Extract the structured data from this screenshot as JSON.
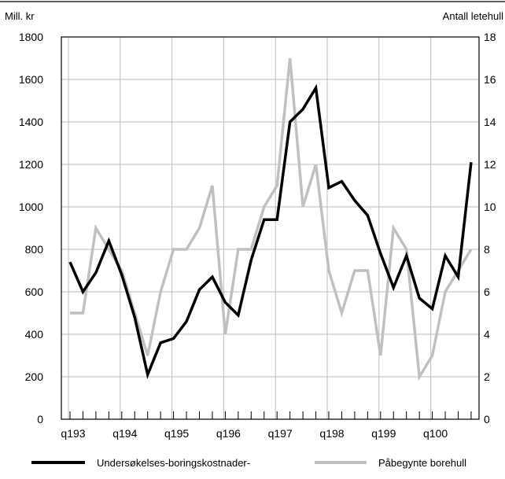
{
  "chart_data": {
    "type": "line",
    "left_axis_label": "Mill. kr",
    "right_axis_label": "Antall letehull",
    "ylim_left": [
      0,
      1800
    ],
    "yticks_left": [
      "0",
      "200",
      "400",
      "600",
      "800",
      "1000",
      "1200",
      "1400",
      "1600",
      "1800"
    ],
    "ylim_right": [
      0,
      18
    ],
    "yticks_right": [
      "0",
      "2",
      "4",
      "6",
      "8",
      "10",
      "12",
      "14",
      "16",
      "18"
    ],
    "x_labels": [
      "q193",
      "q194",
      "q195",
      "q196",
      "q197",
      "q198",
      "q199",
      "q100"
    ],
    "grid": true,
    "legend_position": "bottom",
    "series": [
      {
        "name": "Undersøkelses-boringskostnader-",
        "axis": "left",
        "color": "#000000",
        "values": [
          740,
          600,
          690,
          840,
          680,
          480,
          210,
          360,
          380,
          460,
          610,
          670,
          550,
          490,
          750,
          940,
          940,
          1400,
          1460,
          1560,
          1090,
          1120,
          1030,
          960,
          780,
          620,
          770,
          570,
          520,
          770,
          670,
          1210
        ]
      },
      {
        "name": "Påbegynte borehull",
        "axis": "right",
        "color": "#c0c0c0",
        "values": [
          5,
          5,
          9,
          8,
          7,
          5,
          3,
          6,
          8,
          8,
          9,
          11,
          4,
          8,
          8,
          10,
          11,
          17,
          10,
          12,
          7,
          5,
          7,
          7,
          3,
          9,
          8,
          2,
          3,
          6,
          7,
          8
        ]
      }
    ]
  }
}
